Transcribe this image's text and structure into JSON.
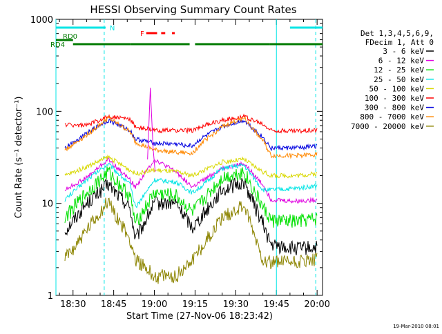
{
  "chart_data": {
    "type": "line",
    "title": "HESSI Observing Summary Count Rates",
    "xlabel": "Start Time (27-Nov-06 18:23:42)",
    "ylabel": "Count Rate (s⁻¹ detector⁻¹)",
    "y_scale": "log",
    "ylim": [
      1,
      1000
    ],
    "xlim": [
      "18:23:42",
      "20:02:00"
    ],
    "x_ticks": [
      "18:30",
      "18:45",
      "19:00",
      "19:15",
      "19:30",
      "19:45",
      "20:00"
    ],
    "y_ticks": [
      "1",
      "10",
      "100",
      "1000"
    ],
    "footer": "19-Mar-2010 08:01",
    "legend": {
      "header": [
        "Det 1,3,4,5,6,9,",
        "FDecim 1, Att 0"
      ],
      "placement": "right"
    },
    "flags": [
      {
        "label": "N",
        "color": "#00e5e5",
        "segments": [
          [
            "18:23:42",
            "18:42:00"
          ],
          [
            "19:50:00",
            "20:02:00"
          ]
        ]
      },
      {
        "label": "RD0",
        "color": "#007a00",
        "segments": [
          [
            "18:23:42",
            "18:30:00"
          ]
        ]
      },
      {
        "label": "RD4",
        "color": "#007a00",
        "segments": [
          [
            "18:30:00",
            "18:51:00"
          ],
          [
            "18:51:00",
            "19:13:00"
          ],
          [
            "19:15:00",
            "19:42:30"
          ],
          [
            "19:42:30",
            "20:02:00"
          ]
        ]
      },
      {
        "label": "F",
        "color": "#ff0000",
        "segments": [
          [
            "18:57:00",
            "19:01:00"
          ],
          [
            "19:02:30",
            "19:04:00"
          ],
          [
            "19:06:30",
            "19:07:30"
          ]
        ]
      }
    ],
    "vlines": [
      {
        "time": "18:23:42",
        "style": "solid",
        "color": "#00e5e5"
      },
      {
        "time": "18:41:30",
        "style": "dashed",
        "color": "#00e5e5"
      },
      {
        "time": "19:45:00",
        "style": "solid",
        "color": "#00e5e5"
      },
      {
        "time": "19:59:30",
        "style": "dashed",
        "color": "#00e5e5"
      }
    ],
    "x": [
      "18:27",
      "18:35",
      "18:43",
      "18:51",
      "18:53",
      "19:00",
      "19:08",
      "19:14",
      "19:17",
      "19:25",
      "19:33",
      "19:40",
      "19:43",
      "19:52",
      "20:00"
    ],
    "series": [
      {
        "name": "3 - 6 keV",
        "color": "#000000",
        "values": [
          5,
          10,
          16,
          9,
          4,
          10,
          10,
          5.5,
          7,
          14,
          17,
          6,
          3.5,
          3.2,
          3.3
        ]
      },
      {
        "name": "6 - 12 keV",
        "color": "#e000e0",
        "values": [
          14,
          19,
          30,
          18,
          15,
          30,
          22,
          15,
          17,
          24,
          27,
          16,
          11,
          10.5,
          11
        ]
      },
      {
        "name": "12 - 25 keV",
        "color": "#00e000",
        "values": [
          7,
          13,
          22,
          12,
          6,
          13,
          12,
          8,
          10,
          19,
          22,
          9,
          6.5,
          6.3,
          6.8
        ]
      },
      {
        "name": "25 - 50 keV",
        "color": "#00e5e5",
        "values": [
          11,
          18,
          27,
          16,
          9,
          18,
          17,
          13,
          15,
          24,
          26,
          14,
          14,
          14.5,
          15.5
        ]
      },
      {
        "name": "50 - 100 keV",
        "color": "#d8d800",
        "values": [
          20,
          25,
          32,
          23,
          21,
          23,
          22,
          20,
          22,
          28,
          30,
          22,
          20,
          20,
          21
        ]
      },
      {
        "name": "100 - 300 keV",
        "color": "#ff0000",
        "values": [
          72,
          70,
          88,
          82,
          68,
          62,
          62,
          62,
          68,
          80,
          88,
          72,
          62,
          61,
          63
        ]
      },
      {
        "name": "300 - 800 keV",
        "color": "#0000e0",
        "values": [
          40,
          58,
          80,
          62,
          50,
          45,
          44,
          42,
          50,
          68,
          80,
          52,
          40,
          40,
          42
        ]
      },
      {
        "name": "800 - 7000 keV",
        "color": "#ff8800",
        "values": [
          38,
          55,
          85,
          60,
          46,
          38,
          36,
          35,
          44,
          68,
          85,
          48,
          33,
          33,
          34
        ]
      },
      {
        "name": "7000 - 20000 keV",
        "color": "#8c8400",
        "values": [
          2.5,
          5,
          10.5,
          4,
          2.5,
          1.6,
          1.6,
          2.5,
          3.2,
          7,
          9.5,
          2.5,
          2.3,
          2.3,
          2.4
        ]
      }
    ],
    "annotations": [
      {
        "series": "6 - 12 keV",
        "time": "18:58:30",
        "value": 180,
        "text": ""
      }
    ]
  }
}
